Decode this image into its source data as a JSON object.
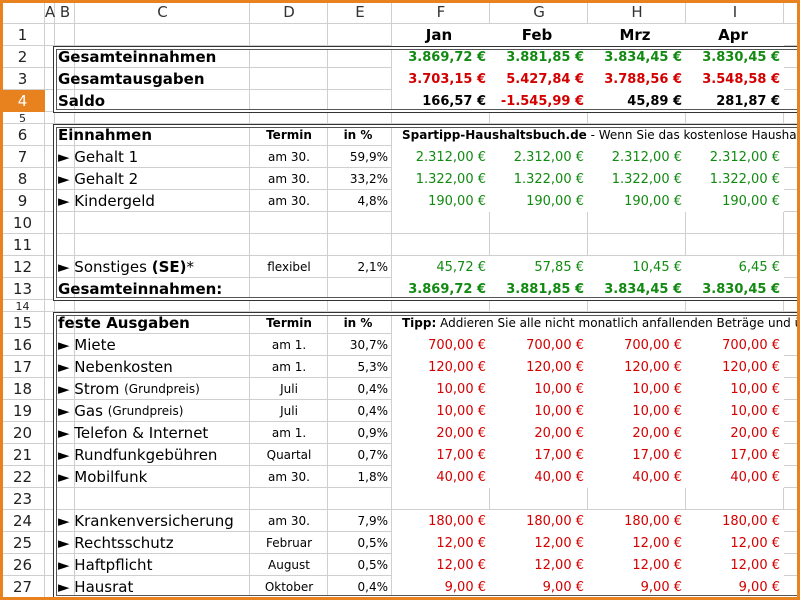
{
  "columns": [
    "A",
    "B",
    "C",
    "D",
    "E",
    "F",
    "G",
    "H",
    "I"
  ],
  "rows": [
    {
      "number": 1,
      "months": [
        "Jan",
        "Feb",
        "Mrz",
        "Apr"
      ]
    },
    {
      "number": 2,
      "label": "Gesamteinnahmen",
      "months": [
        "3.869,72 €",
        "3.881,85 €",
        "3.834,45 €",
        "3.830,45 €"
      ]
    },
    {
      "number": 3,
      "label": "Gesamtausgaben",
      "months": [
        "3.703,15 €",
        "5.427,84 €",
        "3.788,56 €",
        "3.548,58 €"
      ]
    },
    {
      "number": 4,
      "label": "Saldo",
      "months": [
        "166,57 €",
        "-1.545,99 €",
        "45,89 €",
        "281,87 €"
      ]
    },
    {
      "number": 5
    },
    {
      "number": 6,
      "label": "Einnahmen",
      "termin": "Termin",
      "percent": "in %",
      "note": [
        "Spartipp-Haushaltsbuch.de",
        " - Wenn Sie das kostenlose Haushalts"
      ]
    },
    {
      "number": 7,
      "label": "► Gehalt 1",
      "termin": "am 30.",
      "percent": "59,9%",
      "months": [
        "2.312,00 €",
        "2.312,00 €",
        "2.312,00 €",
        "2.312,00 €"
      ]
    },
    {
      "number": 8,
      "label": "► Gehalt 2",
      "termin": "am 30.",
      "percent": "33,2%",
      "months": [
        "1.322,00 €",
        "1.322,00 €",
        "1.322,00 €",
        "1.322,00 €"
      ]
    },
    {
      "number": 9,
      "label": "► Kindergeld",
      "termin": "am 30.",
      "percent": "4,8%",
      "months": [
        "190,00 €",
        "190,00 €",
        "190,00 €",
        "190,00 €"
      ]
    },
    {
      "number": 10
    },
    {
      "number": 11
    },
    {
      "number": 12,
      "label": [
        "► Sonstiges ",
        "(SE)",
        "*"
      ],
      "termin": "flexibel",
      "percent": "2,1%",
      "months": [
        "45,72 €",
        "57,85 €",
        "10,45 €",
        "6,45 €"
      ]
    },
    {
      "number": 13,
      "label": "Gesamteinnahmen:",
      "months": [
        "3.869,72 €",
        "3.881,85 €",
        "3.834,45 €",
        "3.830,45 €"
      ]
    },
    {
      "number": 14
    },
    {
      "number": 15,
      "label": "feste Ausgaben",
      "termin": "Termin",
      "percent": "in %",
      "note": [
        "Tipp:",
        " Addieren Sie alle nicht monatlich anfallenden Beträge und übe"
      ]
    },
    {
      "number": 16,
      "label": "► Miete",
      "termin": "am 1.",
      "percent": "30,7%",
      "months": [
        "700,00 €",
        "700,00 €",
        "700,00 €",
        "700,00 €"
      ]
    },
    {
      "number": 17,
      "label": "► Nebenkosten",
      "termin": "am 1.",
      "percent": "5,3%",
      "months": [
        "120,00 €",
        "120,00 €",
        "120,00 €",
        "120,00 €"
      ]
    },
    {
      "number": 18,
      "label": [
        "► Strom ",
        "(Grundpreis)"
      ],
      "termin": "Juli",
      "percent": "0,4%",
      "months": [
        "10,00 €",
        "10,00 €",
        "10,00 €",
        "10,00 €"
      ]
    },
    {
      "number": 19,
      "label": [
        "► Gas ",
        "(Grundpreis)"
      ],
      "termin": "Juli",
      "percent": "0,4%",
      "months": [
        "10,00 €",
        "10,00 €",
        "10,00 €",
        "10,00 €"
      ]
    },
    {
      "number": 20,
      "label": "► Telefon & Internet",
      "termin": "am 1.",
      "percent": "0,9%",
      "months": [
        "20,00 €",
        "20,00 €",
        "20,00 €",
        "20,00 €"
      ]
    },
    {
      "number": 21,
      "label": "► Rundfunkgebühren",
      "termin": "Quartal",
      "percent": "0,7%",
      "months": [
        "17,00 €",
        "17,00 €",
        "17,00 €",
        "17,00 €"
      ]
    },
    {
      "number": 22,
      "label": "► Mobilfunk",
      "termin": "am 30.",
      "percent": "1,8%",
      "months": [
        "40,00 €",
        "40,00 €",
        "40,00 €",
        "40,00 €"
      ]
    },
    {
      "number": 23
    },
    {
      "number": 24,
      "label": "► Krankenversicherung",
      "termin": "am 30.",
      "percent": "7,9%",
      "months": [
        "180,00 €",
        "180,00 €",
        "180,00 €",
        "180,00 €"
      ]
    },
    {
      "number": 25,
      "label": "► Rechtsschutz",
      "termin": "Februar",
      "percent": "0,5%",
      "months": [
        "12,00 €",
        "12,00 €",
        "12,00 €",
        "12,00 €"
      ]
    },
    {
      "number": 26,
      "label": "► Haftpflicht",
      "termin": "August",
      "percent": "0,5%",
      "months": [
        "12,00 €",
        "12,00 €",
        "12,00 €",
        "12,00 €"
      ]
    },
    {
      "number": 27,
      "label": "► Hausrat",
      "termin": "Oktober",
      "percent": "0,4%",
      "months": [
        "9,00 €",
        "9,00 €",
        "9,00 €",
        "9,00 €"
      ]
    }
  ]
}
